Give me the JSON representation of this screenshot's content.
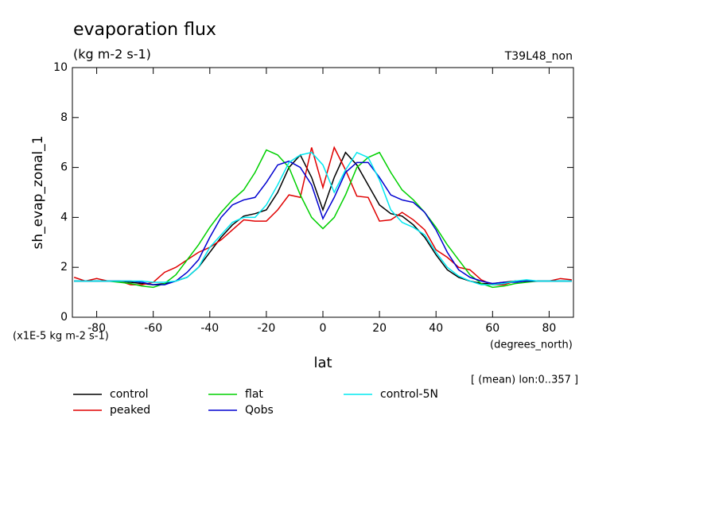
{
  "chart_data": {
    "type": "line",
    "title": "evaporation flux",
    "subtitle": "(kg m-2 s-1)",
    "annotation": "T39L48_non",
    "y_label": "sh_evap_zonal_1",
    "y_units": "(x1E-5 kg m-2 s-1)",
    "x_units": "(degrees_north)",
    "x_label": "lat",
    "note": "[ (mean) lon:0..357 ]",
    "xlim": [
      -88.6,
      88.6
    ],
    "ylim": [
      0,
      10
    ],
    "xticks": [
      -80,
      -60,
      -40,
      -20,
      0,
      20,
      40,
      60,
      80
    ],
    "yticks": [
      0,
      2,
      4,
      6,
      8,
      10
    ],
    "x": [
      -88,
      -84,
      -80,
      -76,
      -72,
      -68,
      -64,
      -60,
      -56,
      -52,
      -48,
      -44,
      -40,
      -36,
      -32,
      -28,
      -24,
      -20,
      -16,
      -12,
      -8,
      -4,
      0,
      4,
      8,
      12,
      16,
      20,
      24,
      28,
      32,
      36,
      40,
      44,
      48,
      52,
      56,
      60,
      64,
      68,
      72,
      76,
      80,
      84,
      88
    ],
    "series": [
      {
        "name": "control",
        "color": "#000000",
        "values": [
          1.45,
          1.45,
          1.45,
          1.45,
          1.45,
          1.4,
          1.35,
          1.3,
          1.35,
          1.45,
          1.6,
          2.0,
          2.6,
          3.2,
          3.7,
          4.05,
          4.15,
          4.3,
          5.0,
          6.0,
          6.5,
          5.6,
          4.3,
          5.6,
          6.6,
          6.1,
          5.3,
          4.5,
          4.15,
          4.05,
          3.7,
          3.2,
          2.5,
          1.9,
          1.6,
          1.45,
          1.35,
          1.35,
          1.4,
          1.45,
          1.45,
          1.45,
          1.45,
          1.45,
          1.45
        ]
      },
      {
        "name": "peaked",
        "color": "#e00000",
        "values": [
          1.6,
          1.45,
          1.55,
          1.45,
          1.45,
          1.3,
          1.3,
          1.4,
          1.8,
          2.0,
          2.3,
          2.6,
          2.8,
          3.1,
          3.5,
          3.9,
          3.85,
          3.85,
          4.3,
          4.9,
          4.8,
          6.8,
          5.2,
          6.8,
          5.9,
          4.85,
          4.8,
          3.85,
          3.9,
          4.2,
          3.9,
          3.5,
          2.7,
          2.4,
          2.0,
          1.9,
          1.5,
          1.3,
          1.3,
          1.45,
          1.45,
          1.45,
          1.45,
          1.55,
          1.5
        ]
      },
      {
        "name": "flat",
        "color": "#00d000",
        "values": [
          1.45,
          1.45,
          1.45,
          1.45,
          1.4,
          1.35,
          1.25,
          1.2,
          1.35,
          1.7,
          2.3,
          2.9,
          3.6,
          4.2,
          4.7,
          5.1,
          5.8,
          6.7,
          6.5,
          6.0,
          4.9,
          4.0,
          3.55,
          4.0,
          4.9,
          6.0,
          6.4,
          6.6,
          5.8,
          5.1,
          4.7,
          4.2,
          3.6,
          2.9,
          2.3,
          1.7,
          1.35,
          1.2,
          1.25,
          1.35,
          1.4,
          1.45,
          1.45,
          1.45,
          1.45
        ]
      },
      {
        "name": "Qobs",
        "color": "#0000d0",
        "values": [
          1.45,
          1.45,
          1.45,
          1.45,
          1.45,
          1.45,
          1.4,
          1.3,
          1.3,
          1.45,
          1.8,
          2.3,
          3.2,
          4.0,
          4.5,
          4.7,
          4.8,
          5.4,
          6.1,
          6.25,
          6.0,
          5.3,
          3.95,
          4.8,
          5.8,
          6.2,
          6.2,
          5.6,
          4.9,
          4.7,
          4.6,
          4.2,
          3.5,
          2.6,
          1.9,
          1.6,
          1.45,
          1.35,
          1.4,
          1.4,
          1.45,
          1.45,
          1.45,
          1.45,
          1.45
        ]
      },
      {
        "name": "control-5N",
        "color": "#00e8f0",
        "values": [
          1.45,
          1.45,
          1.45,
          1.45,
          1.45,
          1.45,
          1.45,
          1.4,
          1.4,
          1.45,
          1.6,
          2.0,
          2.8,
          3.3,
          3.8,
          4.0,
          4.0,
          4.5,
          5.3,
          6.2,
          6.5,
          6.6,
          6.1,
          5.0,
          5.9,
          6.6,
          6.4,
          5.5,
          4.3,
          3.8,
          3.6,
          3.3,
          2.6,
          2.0,
          1.65,
          1.45,
          1.3,
          1.3,
          1.35,
          1.45,
          1.5,
          1.45,
          1.45,
          1.45,
          1.45
        ]
      }
    ]
  }
}
